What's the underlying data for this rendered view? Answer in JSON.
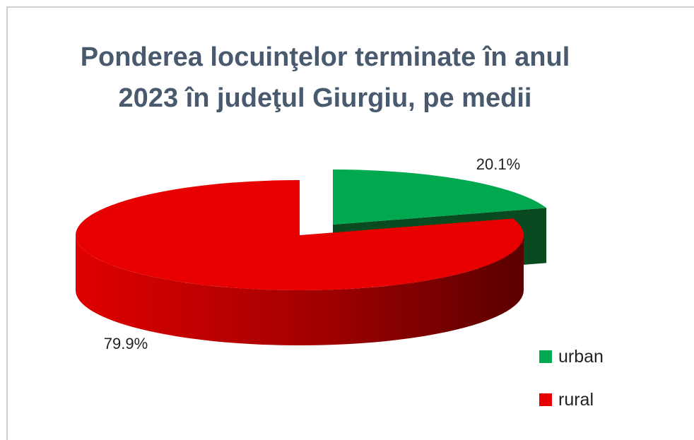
{
  "chart_data": {
    "type": "pie",
    "title": "Ponderea locuinţelor terminate în anul 2023 în judeţul Giurgiu, pe medii",
    "categories": [
      "urban",
      "rural"
    ],
    "values": [
      20.1,
      79.9
    ],
    "value_labels": [
      "20.1%",
      "79.9%"
    ],
    "colors": [
      "#00a84f",
      "#e80000"
    ],
    "legend": "right"
  }
}
